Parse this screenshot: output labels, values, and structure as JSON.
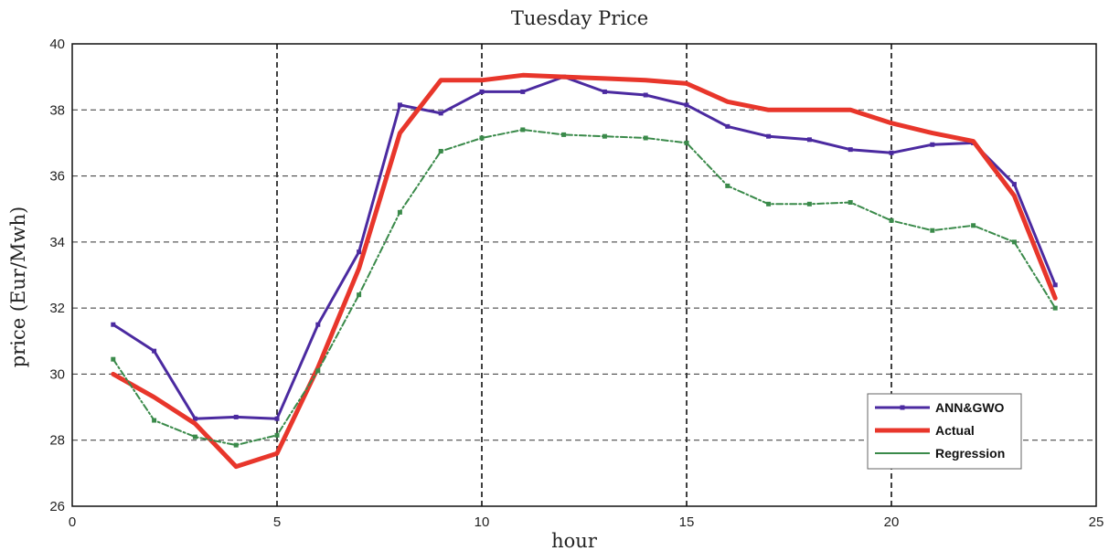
{
  "chart_data": {
    "type": "line",
    "title": "Tuesday Price",
    "xlabel": "hour",
    "ylabel": "price (Eur/Mwh)",
    "xlim": [
      0,
      25
    ],
    "ylim": [
      26,
      40
    ],
    "xticks": [
      0,
      5,
      10,
      15,
      20,
      25
    ],
    "yticks": [
      26,
      28,
      30,
      32,
      34,
      36,
      38,
      40
    ],
    "grid": true,
    "legend_position": "lower-right",
    "series": [
      {
        "name": "ANN&GWO",
        "color": "#4b2aa0",
        "x": [
          1,
          2,
          3,
          4,
          5,
          6,
          7,
          8,
          9,
          10,
          11,
          12,
          13,
          14,
          15,
          16,
          17,
          18,
          19,
          20,
          21,
          22,
          23,
          24
        ],
        "y": [
          31.5,
          30.7,
          28.65,
          28.7,
          28.65,
          31.5,
          33.7,
          38.15,
          37.9,
          38.55,
          38.55,
          39.0,
          38.55,
          38.45,
          38.15,
          37.5,
          37.2,
          37.1,
          36.8,
          36.7,
          36.95,
          37.0,
          35.75,
          32.7
        ]
      },
      {
        "name": "Actual",
        "color": "#e8362b",
        "x": [
          1,
          2,
          3,
          4,
          5,
          6,
          7,
          8,
          9,
          10,
          11,
          12,
          13,
          14,
          15,
          16,
          17,
          18,
          19,
          20,
          21,
          22,
          23,
          24
        ],
        "y": [
          30.0,
          29.3,
          28.5,
          27.2,
          27.6,
          30.2,
          33.2,
          37.3,
          38.9,
          38.9,
          39.05,
          39.0,
          38.95,
          38.9,
          38.8,
          38.25,
          38.0,
          38.0,
          38.0,
          37.6,
          37.3,
          37.05,
          35.4,
          32.3
        ]
      },
      {
        "name": "Regression",
        "color": "#3a8a4a",
        "x": [
          1,
          2,
          3,
          4,
          5,
          6,
          7,
          8,
          9,
          10,
          11,
          12,
          13,
          14,
          15,
          16,
          17,
          18,
          19,
          20,
          21,
          22,
          23,
          24
        ],
        "y": [
          30.45,
          28.6,
          28.1,
          27.85,
          28.15,
          30.1,
          32.4,
          34.9,
          36.75,
          37.15,
          37.4,
          37.25,
          37.2,
          37.15,
          37.0,
          35.7,
          35.15,
          35.15,
          35.2,
          34.65,
          34.35,
          34.5,
          34.0,
          32.0
        ]
      }
    ]
  }
}
